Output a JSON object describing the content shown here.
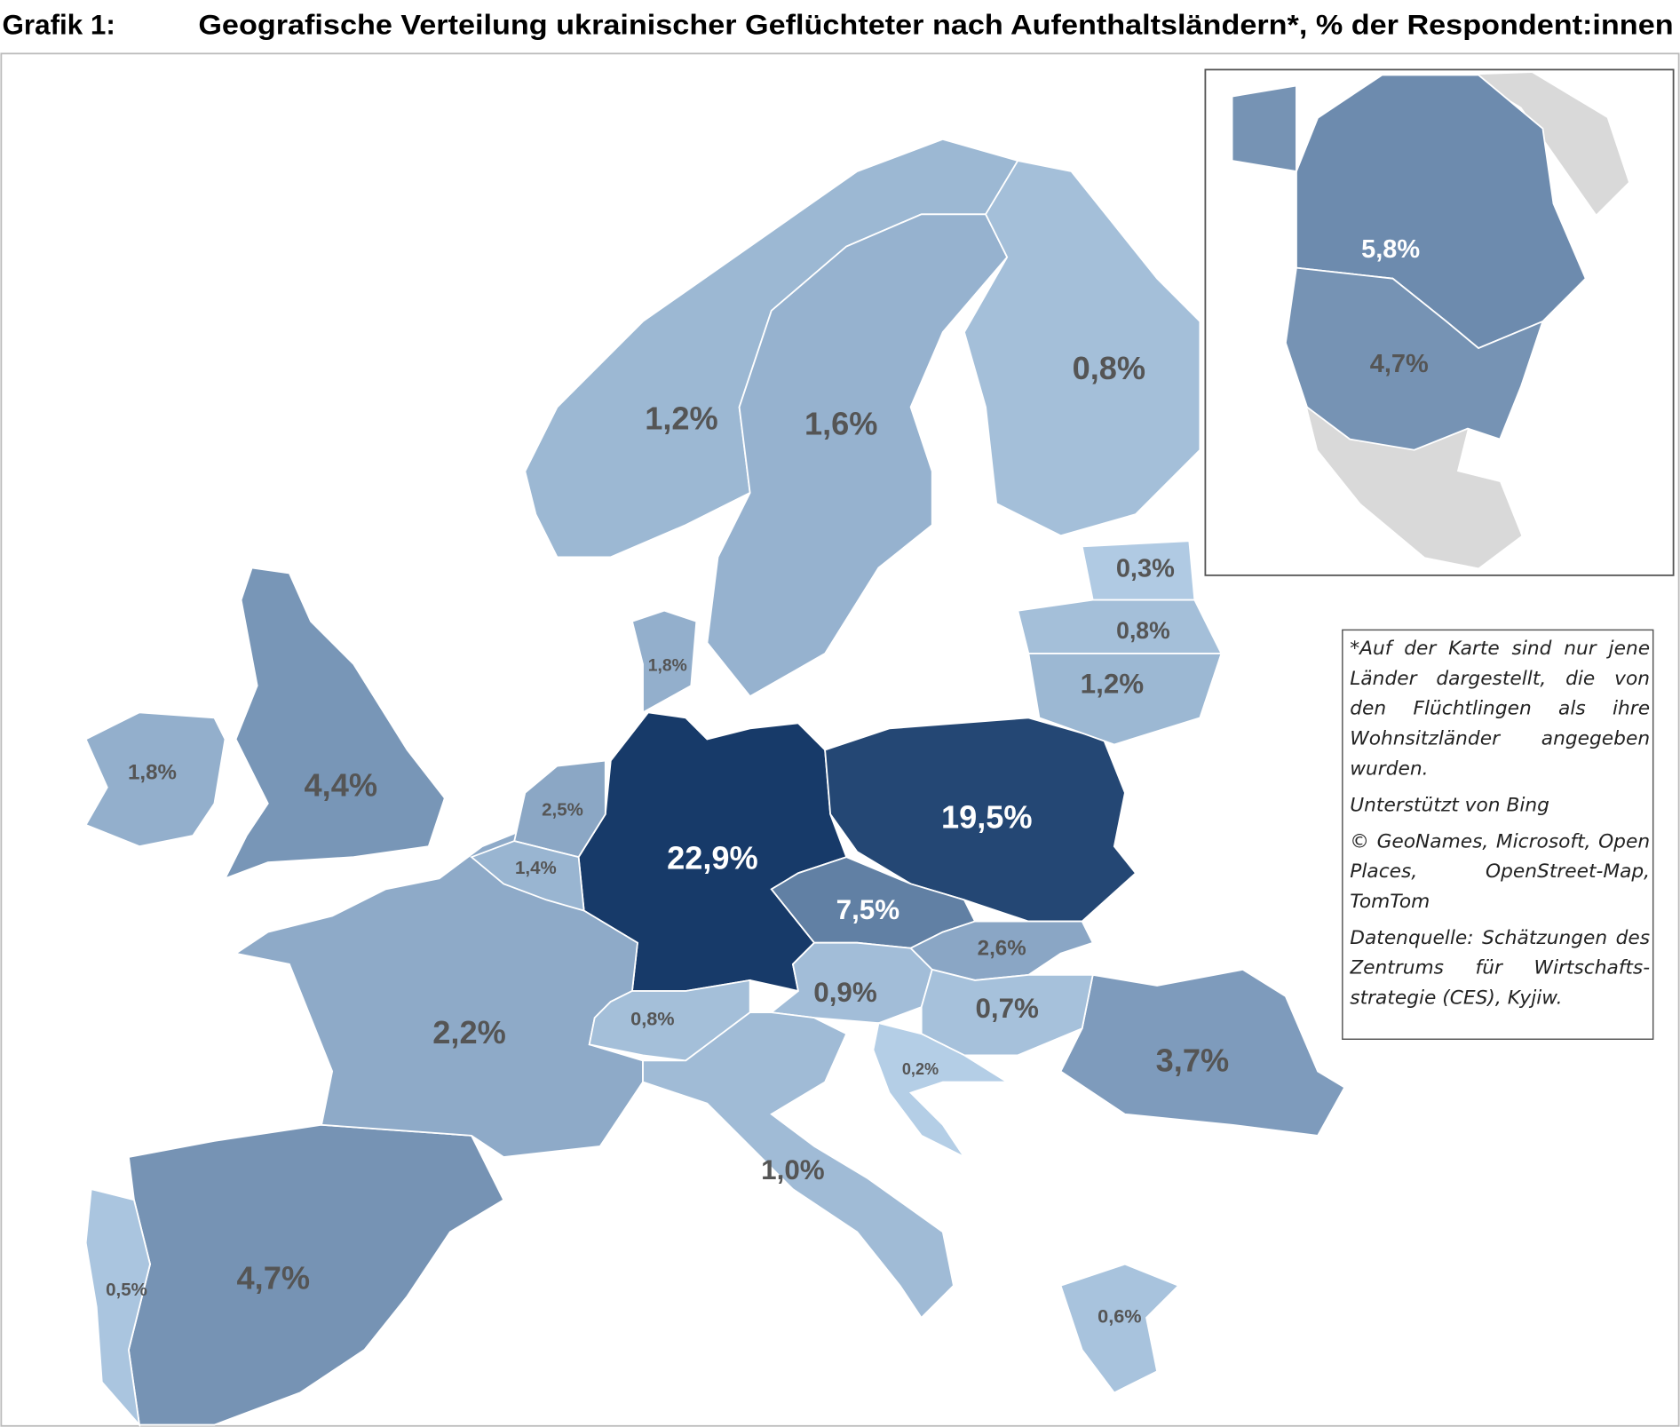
{
  "header": {
    "label": "Grafik 1:",
    "title": "Geografische Verteilung ukrainischer Geflüchteter nach Aufenthaltsländern*, % der Respondent:innen"
  },
  "map": {
    "regions": [
      {
        "label": "22,9%",
        "value": 22.9
      },
      {
        "label": "19,5%",
        "value": 19.5
      },
      {
        "label": "7,5%",
        "value": 7.5
      },
      {
        "label": "4,4%",
        "value": 4.4
      },
      {
        "label": "4,7%",
        "value": 4.7
      },
      {
        "label": "3,7%",
        "value": 3.7
      },
      {
        "label": "2,2%",
        "value": 2.2
      },
      {
        "label": "1,8%",
        "value": 1.8
      },
      {
        "label": "2,5%",
        "value": 2.5
      },
      {
        "label": "1,4%",
        "value": 1.4
      },
      {
        "label": "0,8%",
        "value": 0.8
      },
      {
        "label": "0,9%",
        "value": 0.9
      },
      {
        "label": "2,6%",
        "value": 2.6
      },
      {
        "label": "0,7%",
        "value": 0.7
      },
      {
        "label": "0,2%",
        "value": 0.2
      },
      {
        "label": "1,0%",
        "value": 1.0
      },
      {
        "label": "0,5%",
        "value": 0.5
      },
      {
        "label": "0,6%",
        "value": 0.6
      },
      {
        "label": "1,2%",
        "value": 1.2
      },
      {
        "label": "1,6%",
        "value": 1.6
      },
      {
        "label": "0,8%",
        "value": 0.8
      },
      {
        "label": "1,8%",
        "value": 1.8
      },
      {
        "label": "0,3%",
        "value": 0.3
      },
      {
        "label": "0,8%",
        "value": 0.8
      },
      {
        "label": "1,2%",
        "value": 1.2
      }
    ],
    "inset_regions": [
      {
        "label": "5,8%",
        "value": 5.8
      },
      {
        "label": "4,7%",
        "value": 4.7
      }
    ]
  },
  "notes": [
    "*Auf der Karte sind nur jene Länder dargestellt, die von den Flüchtlingen als ihre Wohnsitzländer angegeben wurden.",
    "Unterstützt von Bing",
    "© GeoNames, Microsoft, Open Places, OpenStreet-Map, TomTom",
    "Datenquelle: Schätzungen des Zentrums für Wirtschafts-strategie (CES), Kyjiw."
  ]
}
